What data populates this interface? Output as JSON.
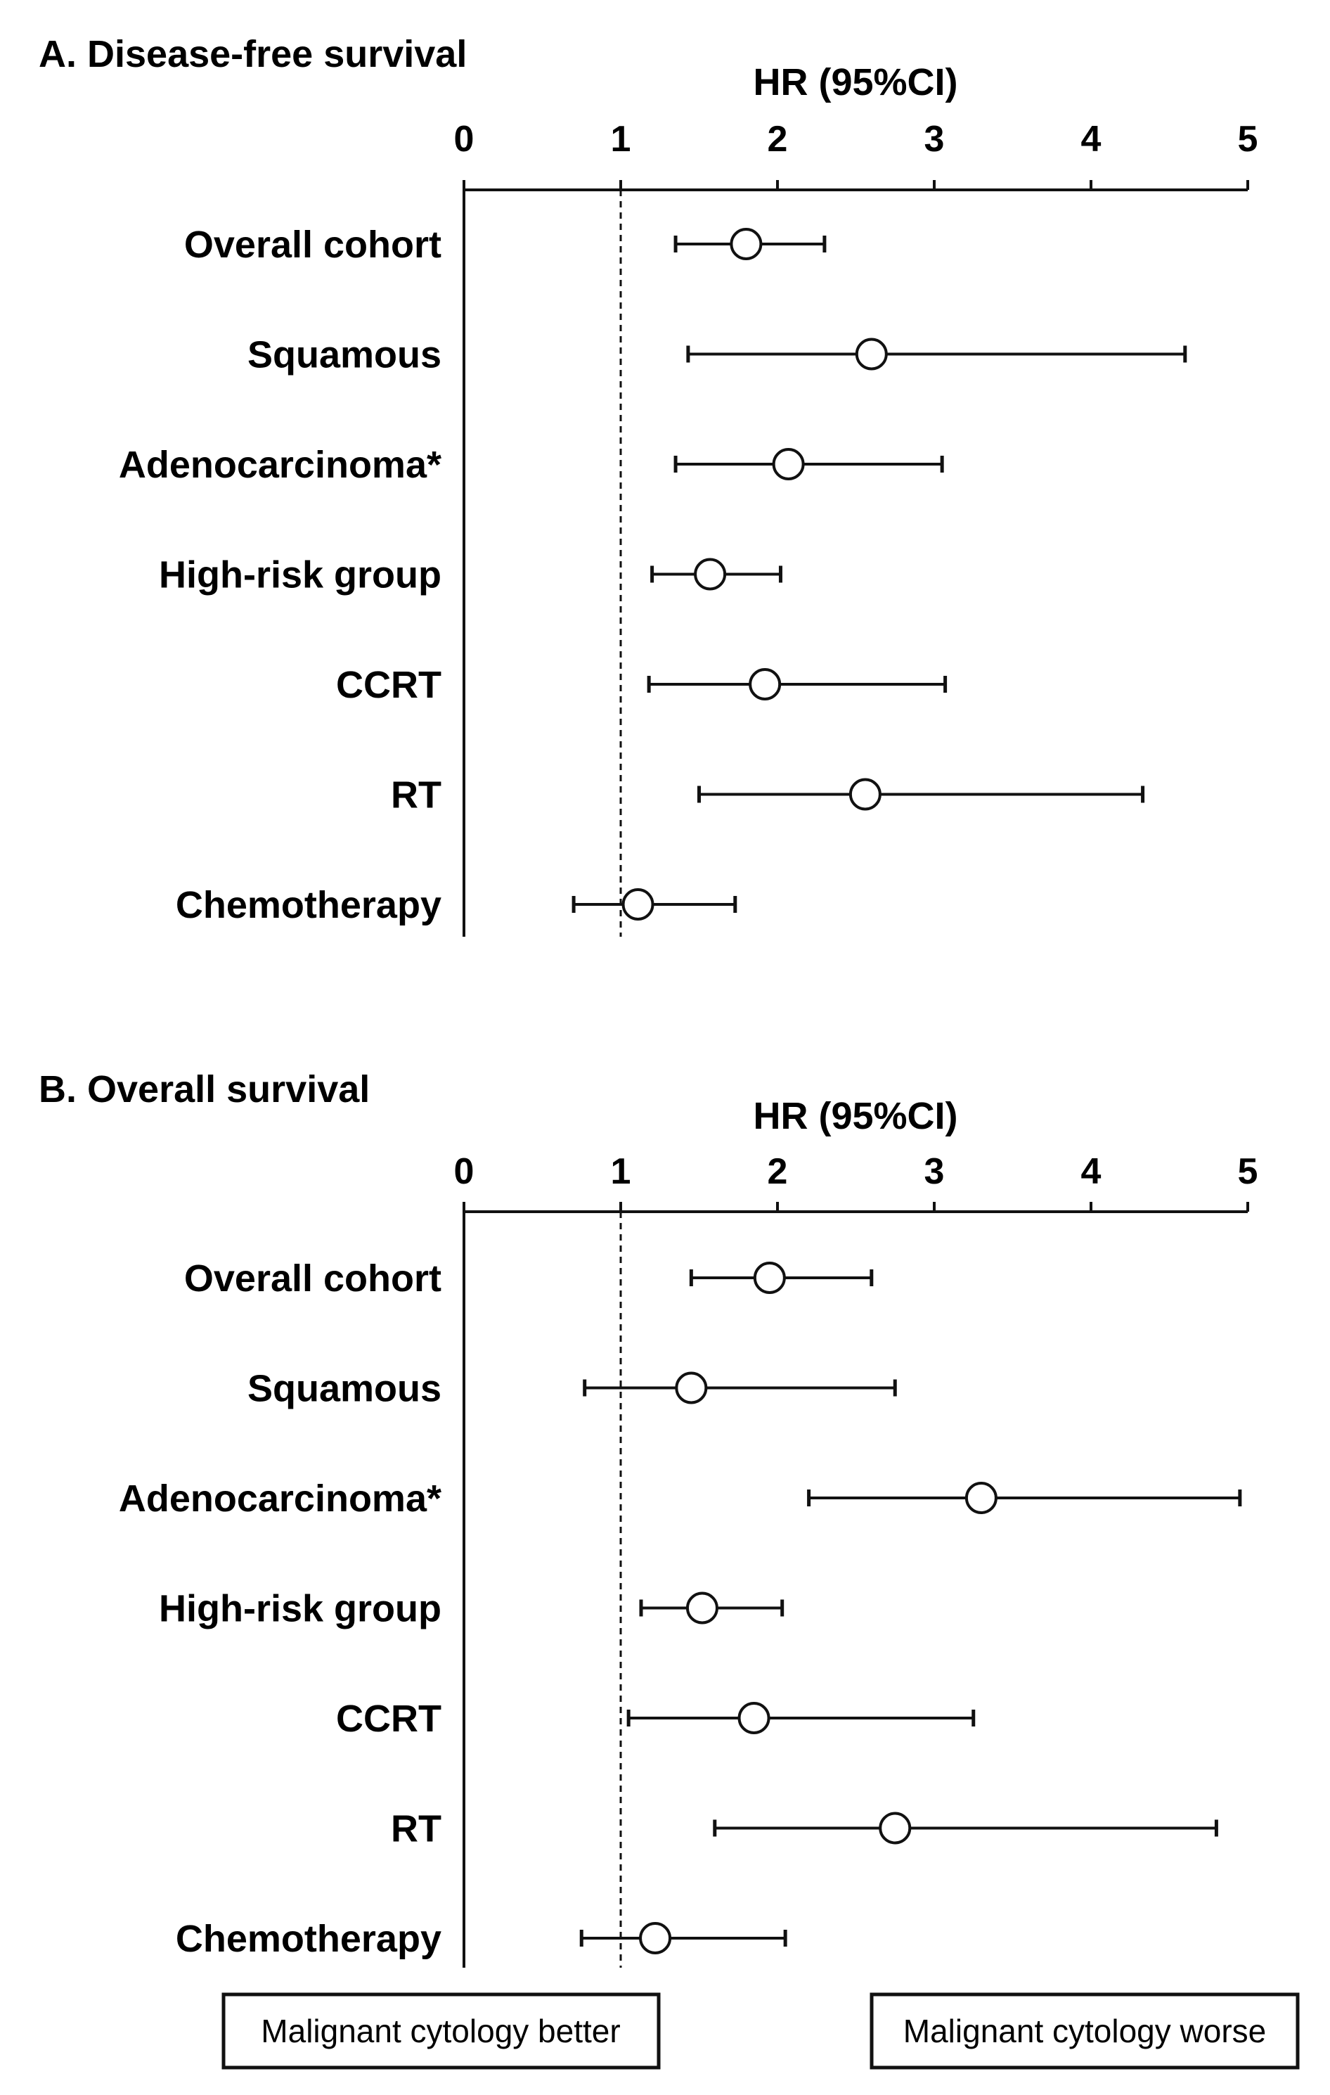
{
  "chart_data": [
    {
      "type": "forest",
      "title": "A. Disease-free survival",
      "xlabel": "HR (95%CI)",
      "xlim": [
        0,
        5
      ],
      "ticks": [
        "0",
        "1",
        "2",
        "3",
        "4",
        "5"
      ],
      "reference_line": 1,
      "rows": [
        {
          "label": "Overall cohort",
          "hr": 1.8,
          "lower": 1.35,
          "upper": 2.3
        },
        {
          "label": "Squamous",
          "hr": 2.6,
          "lower": 1.43,
          "upper": 4.6
        },
        {
          "label": "Adenocarcinoma*",
          "hr": 2.07,
          "lower": 1.35,
          "upper": 3.05
        },
        {
          "label": "High-risk group",
          "hr": 1.57,
          "lower": 1.2,
          "upper": 2.02
        },
        {
          "label": "CCRT",
          "hr": 1.92,
          "lower": 1.18,
          "upper": 3.07
        },
        {
          "label": "RT",
          "hr": 2.56,
          "lower": 1.5,
          "upper": 4.33
        },
        {
          "label": "Chemotherapy",
          "hr": 1.11,
          "lower": 0.7,
          "upper": 1.73
        }
      ]
    },
    {
      "type": "forest",
      "title": "B. Overall survival",
      "xlabel": "HR (95%CI)",
      "xlim": [
        0,
        5
      ],
      "ticks": [
        "0",
        "1",
        "2",
        "3",
        "4",
        "5"
      ],
      "reference_line": 1,
      "rows": [
        {
          "label": "Overall cohort",
          "hr": 1.95,
          "lower": 1.45,
          "upper": 2.6
        },
        {
          "label": "Squamous",
          "hr": 1.45,
          "lower": 0.77,
          "upper": 2.75
        },
        {
          "label": "Adenocarcinoma*",
          "hr": 3.3,
          "lower": 2.2,
          "upper": 4.95
        },
        {
          "label": "High-risk group",
          "hr": 1.52,
          "lower": 1.13,
          "upper": 2.03
        },
        {
          "label": "CCRT",
          "hr": 1.85,
          "lower": 1.05,
          "upper": 3.25
        },
        {
          "label": "RT",
          "hr": 2.75,
          "lower": 1.6,
          "upper": 4.8
        },
        {
          "label": "Chemotherapy",
          "hr": 1.22,
          "lower": 0.75,
          "upper": 2.05
        }
      ]
    }
  ],
  "legend": {
    "left_box": "Malignant cytology better",
    "right_box": "Malignant cytology worse"
  },
  "colors": {
    "ink": "#111111",
    "marker_fill": "#ffffff",
    "background": "#ffffff"
  }
}
